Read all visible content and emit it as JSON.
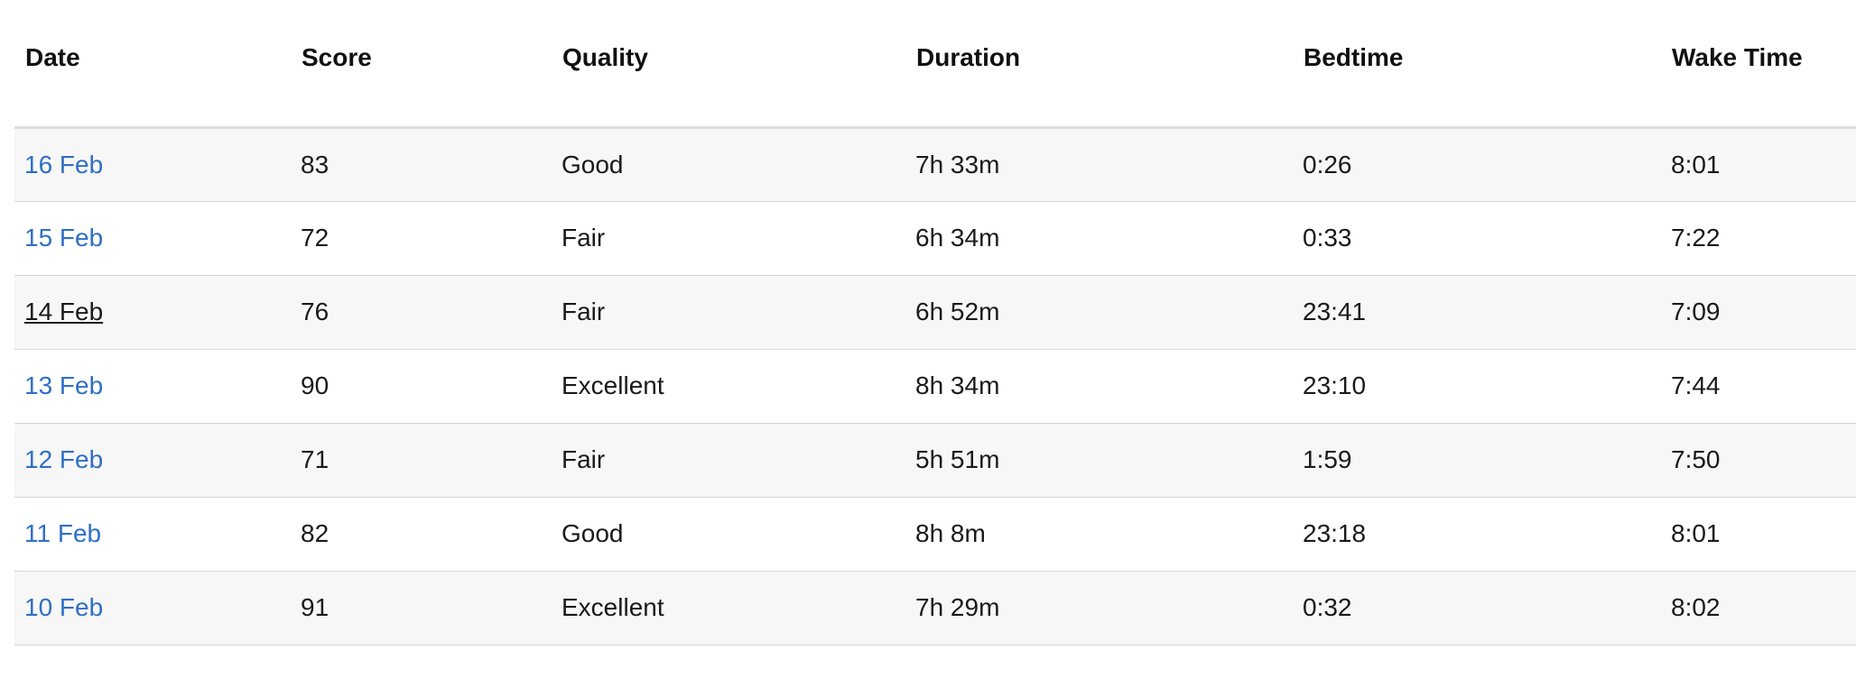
{
  "table": {
    "columns": [
      "Date",
      "Score",
      "Quality",
      "Duration",
      "Bedtime",
      "Wake Time"
    ],
    "rows": [
      {
        "date": "16 Feb",
        "score": "83",
        "quality": "Good",
        "duration": "7h 33m",
        "bedtime": "0:26",
        "wake": "8:01",
        "hovered": false
      },
      {
        "date": "15 Feb",
        "score": "72",
        "quality": "Fair",
        "duration": "6h 34m",
        "bedtime": "0:33",
        "wake": "7:22",
        "hovered": false
      },
      {
        "date": "14 Feb",
        "score": "76",
        "quality": "Fair",
        "duration": "6h 52m",
        "bedtime": "23:41",
        "wake": "7:09",
        "hovered": true
      },
      {
        "date": "13 Feb",
        "score": "90",
        "quality": "Excellent",
        "duration": "8h 34m",
        "bedtime": "23:10",
        "wake": "7:44",
        "hovered": false
      },
      {
        "date": "12 Feb",
        "score": "71",
        "quality": "Fair",
        "duration": "5h 51m",
        "bedtime": "1:59",
        "wake": "7:50",
        "hovered": false
      },
      {
        "date": "11 Feb",
        "score": "82",
        "quality": "Good",
        "duration": "8h 8m",
        "bedtime": "23:18",
        "wake": "8:01",
        "hovered": false
      },
      {
        "date": "10 Feb",
        "score": "91",
        "quality": "Excellent",
        "duration": "7h 29m",
        "bedtime": "0:32",
        "wake": "8:02",
        "hovered": false
      }
    ]
  },
  "colors": {
    "link": "#2f6fc6",
    "row_stripe": "#f7f7f7",
    "divider": "#d6d6d6"
  }
}
